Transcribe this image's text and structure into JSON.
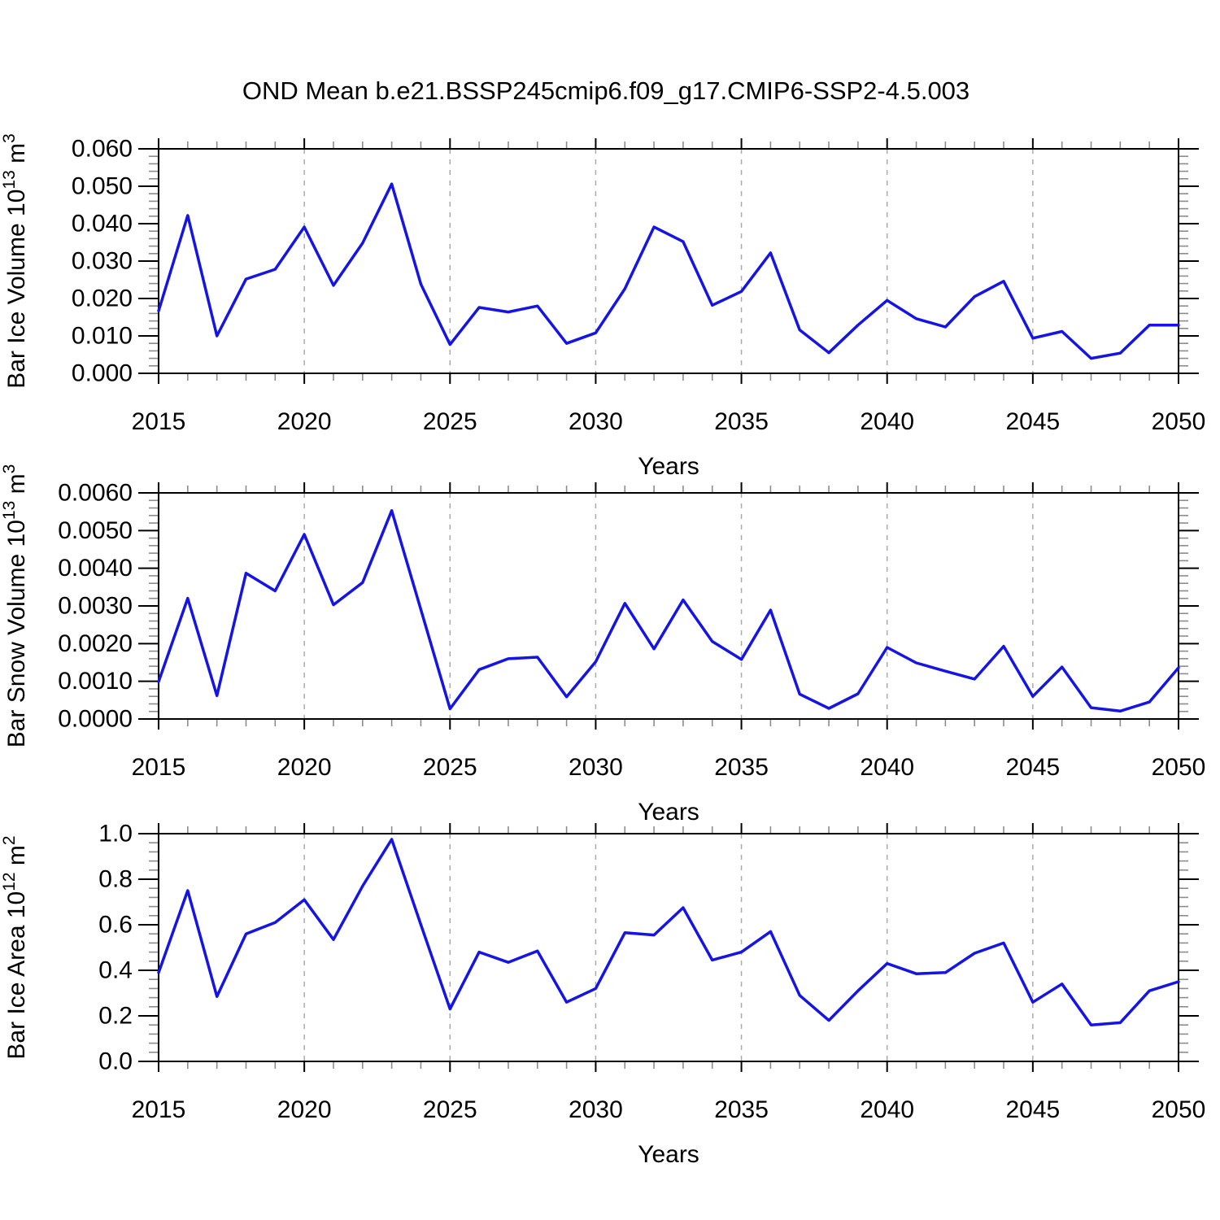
{
  "title": "OND Mean b.e21.BSSP245cmip6.f09_g17.CMIP6-SSP2-4.5.003",
  "colors": {
    "line": "#1414e6",
    "grid": "#aaaaaa",
    "frame": "#000000",
    "major_tick": "#000000",
    "minor_tick": "#8c8c8c",
    "text": "#000000"
  },
  "x_axis": {
    "label": "Years",
    "range": [
      2015,
      2050
    ],
    "major_ticks": [
      2015,
      2020,
      2025,
      2030,
      2035,
      2040,
      2045,
      2050
    ],
    "minor_step": 1,
    "gridlines_at": [
      2020,
      2025,
      2030,
      2035,
      2040,
      2045
    ],
    "years": [
      2015,
      2016,
      2017,
      2018,
      2019,
      2020,
      2021,
      2022,
      2023,
      2024,
      2025,
      2026,
      2027,
      2028,
      2029,
      2030,
      2031,
      2032,
      2033,
      2034,
      2035,
      2036,
      2037,
      2038,
      2039,
      2040,
      2041,
      2042,
      2043,
      2044,
      2045,
      2046,
      2047,
      2048,
      2049,
      2050
    ]
  },
  "chart_data": [
    {
      "type": "line",
      "id": "ice-volume",
      "ylabel": "Bar Ice Volume 10^13 m^3",
      "ylim": [
        0,
        0.06
      ],
      "yticks": [
        0,
        0.01,
        0.02,
        0.03,
        0.04,
        0.05,
        0.06
      ],
      "ytick_labels": [
        "0.000",
        "0.010",
        "0.020",
        "0.030",
        "0.040",
        "0.050",
        "0.060"
      ],
      "yminor_step": 0.002,
      "grid": "x-dashed",
      "legend": "none",
      "values": [
        0.0167,
        0.0422,
        0.01,
        0.0252,
        0.0278,
        0.0391,
        0.0235,
        0.0348,
        0.0506,
        0.0238,
        0.0077,
        0.0176,
        0.0164,
        0.018,
        0.008,
        0.0108,
        0.0226,
        0.0391,
        0.0352,
        0.0182,
        0.0219,
        0.0322,
        0.0116,
        0.0055,
        0.0129,
        0.0195,
        0.0146,
        0.0124,
        0.0205,
        0.0246,
        0.0094,
        0.0112,
        0.004,
        0.0054,
        0.0129,
        0.0129
      ]
    },
    {
      "type": "line",
      "id": "snow-volume",
      "ylabel": "Bar Snow Volume 10^13 m^3",
      "ylim": [
        0,
        0.006
      ],
      "yticks": [
        0,
        0.001,
        0.002,
        0.003,
        0.004,
        0.005,
        0.006
      ],
      "ytick_labels": [
        "0.0000",
        "0.0010",
        "0.0020",
        "0.0030",
        "0.0040",
        "0.0050",
        "0.0060"
      ],
      "yminor_step": 0.0002,
      "grid": "x-dashed",
      "legend": "none",
      "values": [
        0.00099,
        0.0032,
        0.00062,
        0.00387,
        0.0034,
        0.0049,
        0.00303,
        0.00362,
        0.00553,
        0.0029,
        0.00027,
        0.00131,
        0.0016,
        0.00164,
        0.00059,
        0.00152,
        0.00307,
        0.00186,
        0.00316,
        0.00206,
        0.00158,
        0.00289,
        0.00066,
        0.00028,
        0.00067,
        0.0019,
        0.00149,
        0.00127,
        0.00106,
        0.00193,
        0.0006,
        0.00138,
        0.0003,
        0.00021,
        0.00045,
        0.00136
      ]
    },
    {
      "type": "line",
      "id": "ice-area",
      "ylabel": "Bar Ice Area 10^12 m^2",
      "ylim": [
        0,
        1.0
      ],
      "yticks": [
        0,
        0.2,
        0.4,
        0.6,
        0.8,
        1.0
      ],
      "ytick_labels": [
        "0.0",
        "0.2",
        "0.4",
        "0.6",
        "0.8",
        "1.0"
      ],
      "yminor_step": 0.04,
      "grid": "x-dashed",
      "legend": "none",
      "values": [
        0.39,
        0.75,
        0.285,
        0.56,
        0.61,
        0.71,
        0.535,
        0.77,
        0.975,
        0.6,
        0.23,
        0.48,
        0.435,
        0.485,
        0.26,
        0.32,
        0.565,
        0.555,
        0.675,
        0.445,
        0.48,
        0.57,
        0.29,
        0.18,
        0.31,
        0.43,
        0.385,
        0.39,
        0.475,
        0.52,
        0.26,
        0.34,
        0.16,
        0.17,
        0.31,
        0.35
      ]
    }
  ]
}
